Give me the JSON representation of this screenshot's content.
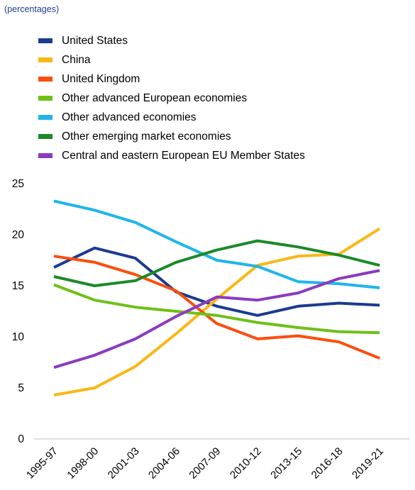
{
  "subtitle": "(percentages)",
  "chart_data": {
    "type": "line",
    "categories": [
      "1995-97",
      "1998-00",
      "2001-03",
      "2004-06",
      "2007-09",
      "2010-12",
      "2013-15",
      "2016-18",
      "2019-21"
    ],
    "ylim": [
      0,
      25
    ],
    "yticks": [
      0,
      5,
      10,
      15,
      20,
      25
    ],
    "grid": false,
    "legend_position": "top-left",
    "series": [
      {
        "name": "United States",
        "color": "#1a3c8f",
        "values": [
          16.8,
          18.7,
          17.7,
          14.4,
          13.0,
          12.1,
          13.0,
          13.3,
          13.1
        ]
      },
      {
        "name": "China",
        "color": "#fbb715",
        "values": [
          4.3,
          5.0,
          7.1,
          10.3,
          13.7,
          17.0,
          17.9,
          18.1,
          20.6
        ]
      },
      {
        "name": "United Kingdom",
        "color": "#fb4e0e",
        "values": [
          17.9,
          17.3,
          16.1,
          14.5,
          11.3,
          9.8,
          10.1,
          9.5,
          7.9
        ]
      },
      {
        "name": "Other advanced European economies",
        "color": "#6ec018",
        "values": [
          15.1,
          13.6,
          12.9,
          12.5,
          12.1,
          11.4,
          10.9,
          10.5,
          10.4
        ]
      },
      {
        "name": "Other advanced economies",
        "color": "#1fb5ea",
        "values": [
          23.3,
          22.4,
          21.2,
          19.3,
          17.5,
          16.9,
          15.4,
          15.2,
          14.8
        ]
      },
      {
        "name": "Other emerging market economies",
        "color": "#1a8a28",
        "values": [
          15.9,
          15.0,
          15.5,
          17.3,
          18.5,
          19.4,
          18.8,
          18.0,
          17.0
        ]
      },
      {
        "name": "Central and eastern European EU Member States",
        "color": "#8a3bc0",
        "values": [
          7.0,
          8.2,
          9.8,
          12.0,
          13.9,
          13.6,
          14.3,
          15.7,
          16.5
        ]
      }
    ]
  }
}
